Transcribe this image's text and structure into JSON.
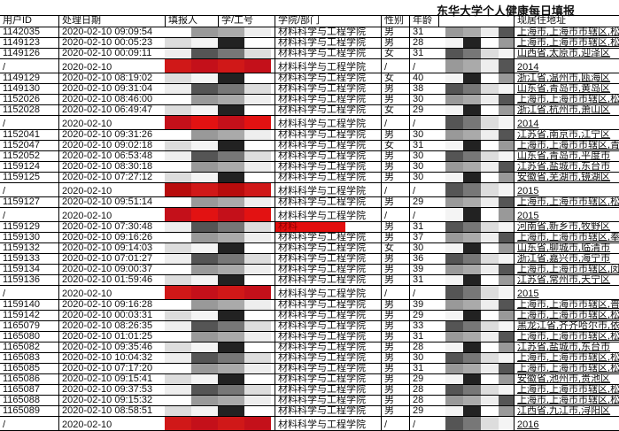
{
  "title": "东华大学个人健康每日填报",
  "columns": [
    "用户ID",
    "处理日期",
    "填报人",
    "学/工号",
    "学院/部门",
    "性别",
    "年龄",
    "",
    "现居住地址"
  ],
  "highlight_color": "#e30e0e",
  "rows": [
    {
      "id": "1142035",
      "date": "2020-02-10 09:09:54",
      "dept": "材料科学与工程学院",
      "sex": "男",
      "age": "31",
      "addr": "上海市,上海市市辖区,松江"
    },
    {
      "id": "1149123",
      "date": "2020-02-10 00:05:23",
      "dept": "材料科学与工程学院",
      "sex": "男",
      "age": "28",
      "addr": "上海市,上海市市辖区,松江"
    },
    {
      "id": "1149126",
      "date": "2020-02-10 00:09:11",
      "dept": "材料科学与工程学院",
      "sex": "女",
      "age": "31",
      "addr": "山西省,太原市,迎泽区"
    },
    {
      "id": "/",
      "date": "2020-02-10",
      "dept": "材料科学与工程学院",
      "sex": "/",
      "age": "/",
      "addr": "2014",
      "slash": true
    },
    {
      "id": "1149129",
      "date": "2020-02-10 08:19:02",
      "dept": "材料科学与工程学院",
      "sex": "女",
      "age": "40",
      "addr": "浙江省,温州市,瓯海区"
    },
    {
      "id": "1149130",
      "date": "2020-02-10 09:31:04",
      "dept": "材料科学与工程学院",
      "sex": "男",
      "age": "38",
      "addr": "山东省,青岛市,黄岛区"
    },
    {
      "id": "1152026",
      "date": "2020-02-10 08:46:00",
      "dept": "材料科学与工程学院",
      "sex": "男",
      "age": "30",
      "addr": "上海市,上海市市辖区,松江"
    },
    {
      "id": "1152028",
      "date": "2020-02-10 06:49:47",
      "dept": "材料科学与工程学院",
      "sex": "女",
      "age": "29",
      "addr": "浙江省,杭州市,萧山区"
    },
    {
      "id": "/",
      "date": "2020-02-10",
      "dept": "材料科学与工程学院",
      "sex": "/",
      "age": "/",
      "addr": "2014",
      "slash": true
    },
    {
      "id": "1152041",
      "date": "2020-02-10 09:31:26",
      "dept": "材料科学与工程学院",
      "sex": "男",
      "age": "30",
      "addr": "江苏省,南京市,江宁区"
    },
    {
      "id": "1152047",
      "date": "2020-02-10 09:02:18",
      "dept": "材料科学与工程学院",
      "sex": "女",
      "age": "31",
      "addr": "上海市,上海市市辖区,青浦"
    },
    {
      "id": "1152052",
      "date": "2020-02-10 06:53:48",
      "dept": "材料科学与工程学院",
      "sex": "男",
      "age": "30",
      "addr": "山东省,青岛市,平度市"
    },
    {
      "id": "1159124",
      "date": "2020-02-10 08:30:18",
      "dept": "材料科学与工程学院",
      "sex": "男",
      "age": "30",
      "addr": "江苏省,盐城市,东台市"
    },
    {
      "id": "1159125",
      "date": "2020-02-10 07:27:12",
      "dept": "材料科学与工程学院",
      "sex": "男",
      "age": "30",
      "addr": "安徽省,芜湖市,镜湖区"
    },
    {
      "id": "/",
      "date": "2020-02-10",
      "dept": "材料科学与工程学院",
      "sex": "/",
      "age": "/",
      "addr": "2015",
      "slash": true
    },
    {
      "id": "1159127",
      "date": "2020-02-10 09:51:14",
      "dept": "材料科学与工程学院",
      "sex": "男",
      "age": "29",
      "addr": "上海市,上海市市辖区,松江"
    },
    {
      "id": "/",
      "date": "2020-02-10",
      "dept": "材料科学与工程学院",
      "sex": "/",
      "age": "/",
      "addr": "2015",
      "slash": true
    },
    {
      "id": "1159129",
      "date": "2020-02-10 07:30:48",
      "dept": "材料",
      "sex": "男",
      "age": "31",
      "addr": "河南省,新乡市,牧野区",
      "dept_highlight": true
    },
    {
      "id": "1159130",
      "date": "2020-02-10 09:16:26",
      "dept": "材料科学与工程学院",
      "sex": "男",
      "age": "37",
      "addr": "上海市,上海市市辖区,奉贤"
    },
    {
      "id": "1159132",
      "date": "2020-02-10 09:14:03",
      "dept": "材料科学与工程学院",
      "sex": "女",
      "age": "30",
      "addr": "山东省,聊城市,临清市"
    },
    {
      "id": "1159133",
      "date": "2020-02-10 07:01:27",
      "dept": "材料科学与工程学院",
      "sex": "男",
      "age": "36",
      "addr": "浙江省,嘉兴市,海宁市"
    },
    {
      "id": "1159134",
      "date": "2020-02-10 09:00:37",
      "dept": "材料科学与工程学院",
      "sex": "男",
      "age": "39",
      "addr": "上海市,上海市市辖区,闵行"
    },
    {
      "id": "1159136",
      "date": "2020-02-10 01:59:46",
      "dept": "材料科学与工程学院",
      "sex": "男",
      "age": "31",
      "addr": "江苏省,常州市,天宁区"
    },
    {
      "id": "/",
      "date": "2020-02-10",
      "dept": "材料科学与工程学院",
      "sex": "/",
      "age": "/",
      "addr": "2015",
      "slash": true
    },
    {
      "id": "1159140",
      "date": "2020-02-10 09:16:28",
      "dept": "材料科学与工程学院",
      "sex": "男",
      "age": "39",
      "addr": "上海市,上海市市辖区,普陀"
    },
    {
      "id": "1159142",
      "date": "2020-02-10 00:03:31",
      "dept": "材料科学与工程学院",
      "sex": "男",
      "age": "29",
      "addr": "上海市,上海市市辖区,松江"
    },
    {
      "id": "1165079",
      "date": "2020-02-10 08:26:35",
      "dept": "材料科学与工程学院",
      "sex": "男",
      "age": "33",
      "addr": "黑龙江省,齐齐哈尔市,依安"
    },
    {
      "id": "1165080",
      "date": "2020-02-10 01:01:25",
      "dept": "材料科学与工程学院",
      "sex": "男",
      "age": "31",
      "addr": "上海市,上海市市辖区,松江"
    },
    {
      "id": "1165082",
      "date": "2020-02-10 09:35:46",
      "dept": "材料科学与工程学院",
      "sex": "男",
      "age": "28",
      "addr": "江苏省,盐城市,东台市"
    },
    {
      "id": "1165083",
      "date": "2020-02-10 10:04:32",
      "dept": "材料科学与工程学院",
      "sex": "男",
      "age": "30",
      "addr": "上海市,上海市市辖区,松江"
    },
    {
      "id": "1165085",
      "date": "2020-02-10 07:17:20",
      "dept": "材料科学与工程学院",
      "sex": "男",
      "age": "31",
      "addr": "上海市,上海市市辖区,松江"
    },
    {
      "id": "1165086",
      "date": "2020-02-10 09:15:41",
      "dept": "材料科学与工程学院",
      "sex": "男",
      "age": "29",
      "addr": "安徽省,池州市,贵池区"
    },
    {
      "id": "1165087",
      "date": "2020-02-10 09:37:53",
      "dept": "材料科学与工程学院",
      "sex": "男",
      "age": "28",
      "addr": "上海市,上海市市辖区,松江"
    },
    {
      "id": "1165088",
      "date": "2020-02-10 09:15:32",
      "dept": "材料科学与工程学院",
      "sex": "男",
      "age": "28",
      "addr": "上海市,上海市市辖区,松江"
    },
    {
      "id": "1165089",
      "date": "2020-02-10 08:58:51",
      "dept": "材料科学与工程学院",
      "sex": "男",
      "age": "29",
      "addr": "江西省,九江市,浔阳区"
    },
    {
      "id": "/",
      "date": "2020-02-10",
      "dept": "材料科学与工程学院",
      "sex": "/",
      "age": "/",
      "addr": "2016",
      "slash": true
    }
  ]
}
